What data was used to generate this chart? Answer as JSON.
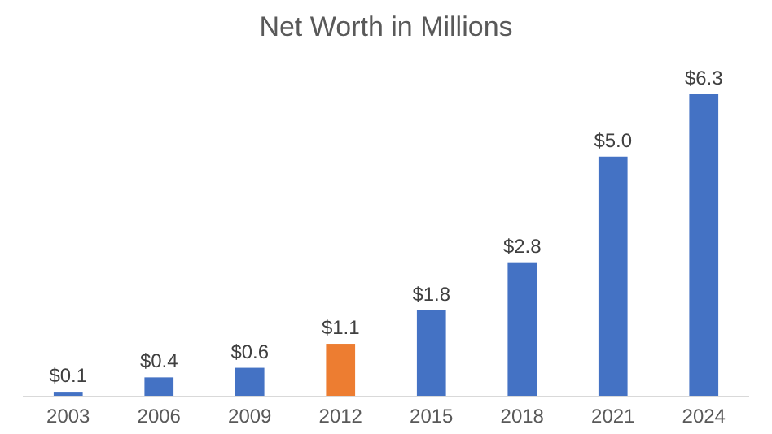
{
  "chart_data": {
    "type": "bar",
    "title": "Net Worth in Millions",
    "categories": [
      "2003",
      "2006",
      "2009",
      "2012",
      "2015",
      "2018",
      "2021",
      "2024"
    ],
    "values": [
      0.1,
      0.4,
      0.6,
      1.1,
      1.8,
      2.8,
      5.0,
      6.3
    ],
    "colors": [
      "#4472c4",
      "#4472c4",
      "#4472c4",
      "#ed7d31",
      "#4472c4",
      "#4472c4",
      "#4472c4",
      "#4472c4"
    ],
    "value_labels": [
      "$0.1",
      "$0.4",
      "$0.6",
      "$1.1",
      "$1.8",
      "$2.8",
      "$5.0",
      "$6.3"
    ],
    "grid": false
  }
}
